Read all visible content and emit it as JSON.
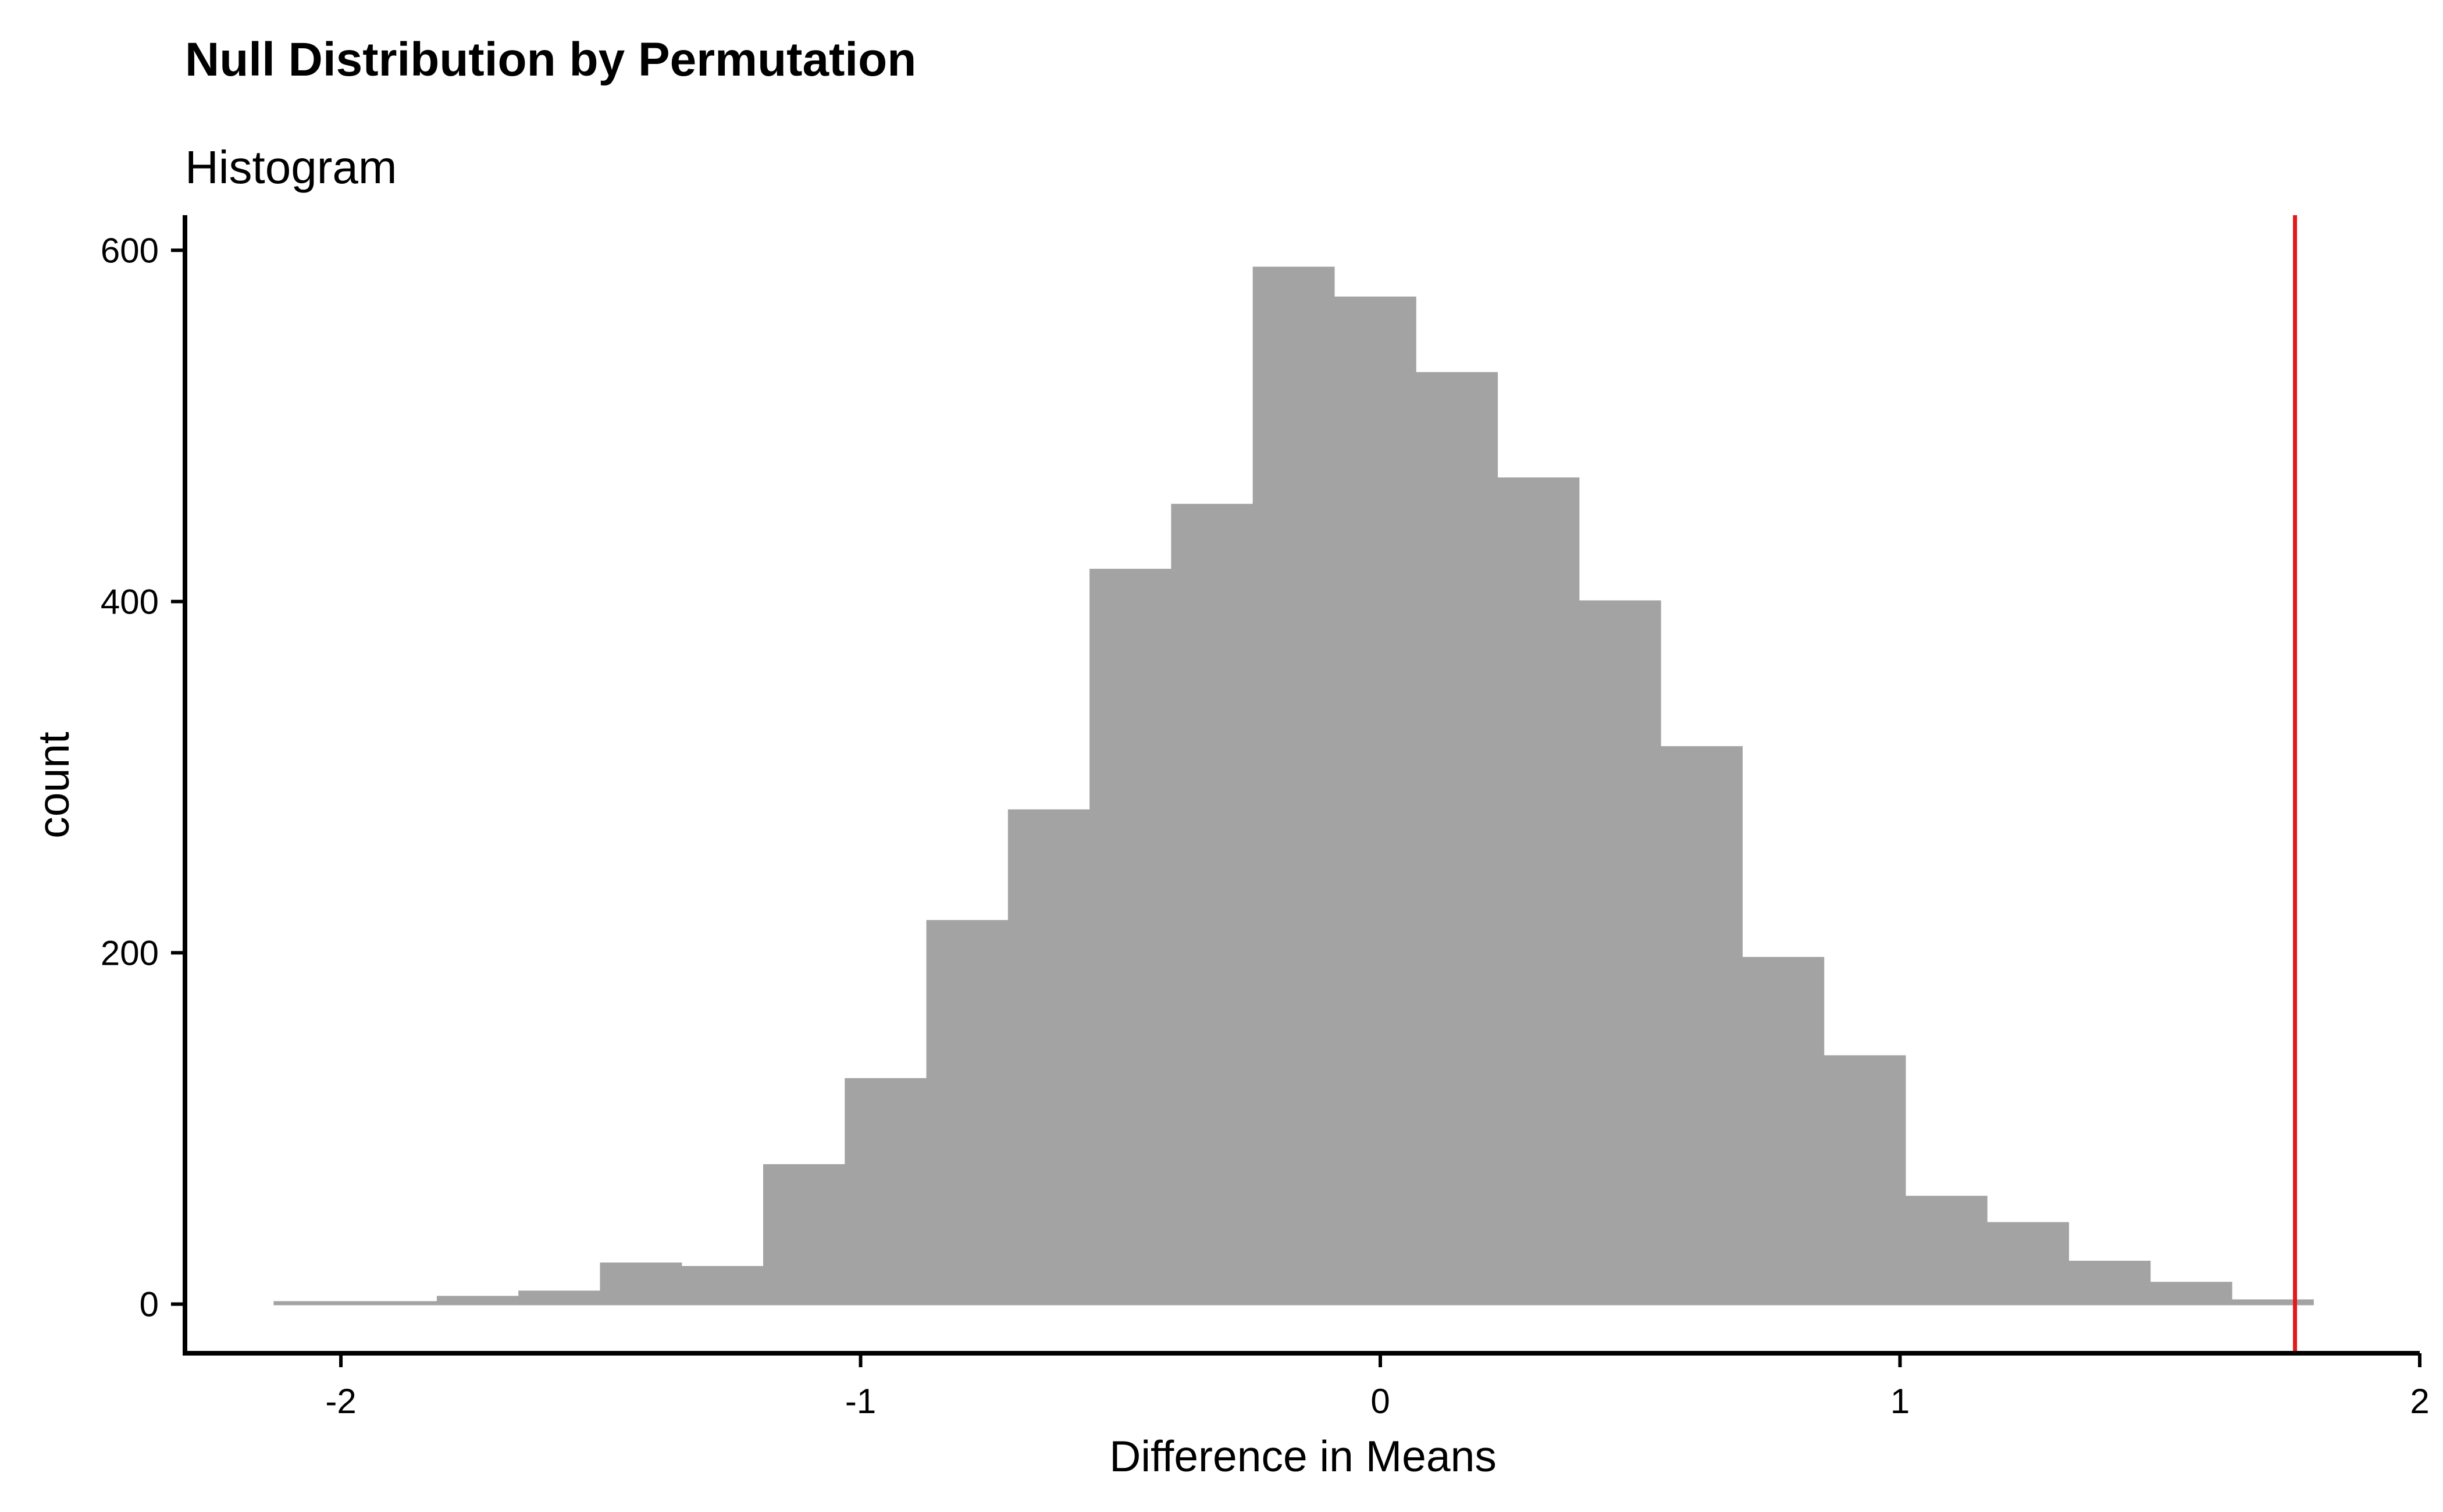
{
  "chart_data": {
    "type": "bar",
    "title": "Null Distribution by Permutation",
    "subtitle": "Histogram",
    "xlabel": "Difference in Means",
    "ylabel": "count",
    "xlim": [
      -2.3,
      2.0
    ],
    "ylim": [
      -28,
      620
    ],
    "x_ticks": [
      -2,
      -1,
      0,
      1,
      2
    ],
    "y_ticks": [
      0,
      200,
      400,
      600
    ],
    "bin_width": 0.157,
    "bins": [
      {
        "x": -2.051,
        "count": 1
      },
      {
        "x": -1.894,
        "count": 1
      },
      {
        "x": -1.737,
        "count": 4
      },
      {
        "x": -1.58,
        "count": 7
      },
      {
        "x": -1.423,
        "count": 23
      },
      {
        "x": -1.266,
        "count": 21
      },
      {
        "x": -1.109,
        "count": 79
      },
      {
        "x": -0.952,
        "count": 128
      },
      {
        "x": -0.795,
        "count": 218
      },
      {
        "x": -0.638,
        "count": 281
      },
      {
        "x": -0.481,
        "count": 418
      },
      {
        "x": -0.324,
        "count": 455
      },
      {
        "x": -0.167,
        "count": 590
      },
      {
        "x": -0.01,
        "count": 573
      },
      {
        "x": 0.147,
        "count": 530
      },
      {
        "x": 0.304,
        "count": 470
      },
      {
        "x": 0.461,
        "count": 400
      },
      {
        "x": 0.618,
        "count": 317
      },
      {
        "x": 0.775,
        "count": 197
      },
      {
        "x": 0.932,
        "count": 141
      },
      {
        "x": 1.089,
        "count": 61
      },
      {
        "x": 1.246,
        "count": 46
      },
      {
        "x": 1.403,
        "count": 24
      },
      {
        "x": 1.56,
        "count": 12
      },
      {
        "x": 1.717,
        "count": 2
      }
    ],
    "observed_stat": 1.76,
    "observed_stat_color": "#e31a1c",
    "bar_color": "#a3a3a3",
    "grid": false
  }
}
